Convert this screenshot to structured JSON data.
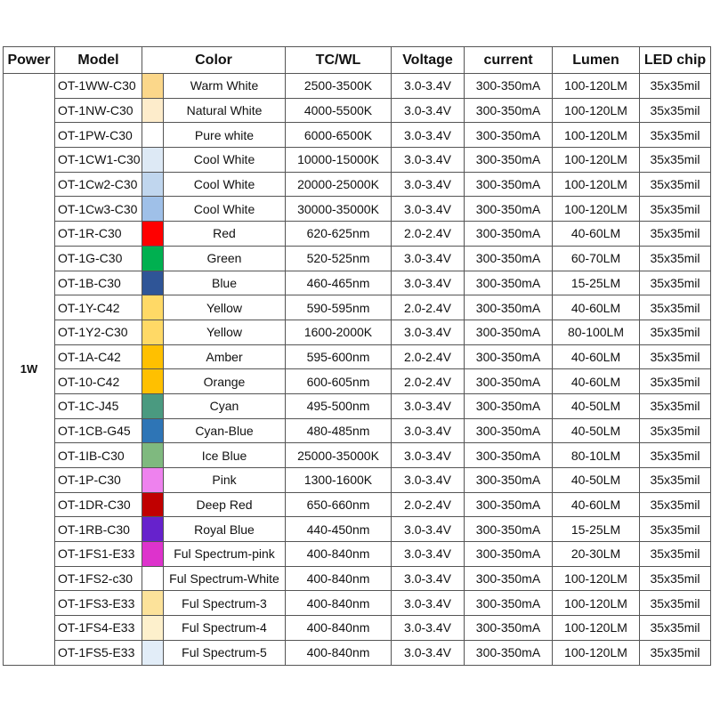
{
  "headers": {
    "power": "Power",
    "model": "Model",
    "color": "Color",
    "tcwl": "TC/WL",
    "voltage": "Voltage",
    "current": "current",
    "lumen": "Lumen",
    "chip": "LED chip"
  },
  "power_value": "1W",
  "rows": [
    {
      "model": "OT-1WW-C30",
      "swatch": "#fbd78a",
      "color": "Warm White",
      "tcwl": "2500-3500K",
      "voltage": "3.0-3.4V",
      "current": "300-350mA",
      "lumen": "100-120LM",
      "chip": "35x35mil"
    },
    {
      "model": "OT-1NW-C30",
      "swatch": "#fdeccb",
      "color": "Natural White",
      "tcwl": "4000-5500K",
      "voltage": "3.0-3.4V",
      "current": "300-350mA",
      "lumen": "100-120LM",
      "chip": "35x35mil"
    },
    {
      "model": "OT-1PW-C30",
      "swatch": "#ffffff",
      "color": "Pure white",
      "tcwl": "6000-6500K",
      "voltage": "3.0-3.4V",
      "current": "300-350mA",
      "lumen": "100-120LM",
      "chip": "35x35mil"
    },
    {
      "model": "OT-1CW1-C30",
      "swatch": "#dde9f5",
      "color": "Cool White",
      "tcwl": "10000-15000K",
      "voltage": "3.0-3.4V",
      "current": "300-350mA",
      "lumen": "100-120LM",
      "chip": "35x35mil"
    },
    {
      "model": "OT-1Cw2-C30",
      "swatch": "#c0d6ee",
      "color": "Cool White",
      "tcwl": "20000-25000K",
      "voltage": "3.0-3.4V",
      "current": "300-350mA",
      "lumen": "100-120LM",
      "chip": "35x35mil"
    },
    {
      "model": "OT-1Cw3-C30",
      "swatch": "#9fc0e8",
      "color": "Cool White",
      "tcwl": "30000-35000K",
      "voltage": "3.0-3.4V",
      "current": "300-350mA",
      "lumen": "100-120LM",
      "chip": "35x35mil"
    },
    {
      "model": "OT-1R-C30",
      "swatch": "#ff0000",
      "color": "Red",
      "tcwl": "620-625nm",
      "voltage": "2.0-2.4V",
      "current": "300-350mA",
      "lumen": "40-60LM",
      "chip": "35x35mil"
    },
    {
      "model": "OT-1G-C30",
      "swatch": "#00b050",
      "color": "Green",
      "tcwl": "520-525nm",
      "voltage": "3.0-3.4V",
      "current": "300-350mA",
      "lumen": "60-70LM",
      "chip": "35x35mil"
    },
    {
      "model": "OT-1B-C30",
      "swatch": "#2f5597",
      "color": "Blue",
      "tcwl": "460-465nm",
      "voltage": "3.0-3.4V",
      "current": "300-350mA",
      "lumen": "15-25LM",
      "chip": "35x35mil"
    },
    {
      "model": "OT-1Y-C42",
      "swatch": "#ffd966",
      "color": "Yellow",
      "tcwl": "590-595nm",
      "voltage": "2.0-2.4V",
      "current": "300-350mA",
      "lumen": "40-60LM",
      "chip": "35x35mil"
    },
    {
      "model": "OT-1Y2-C30",
      "swatch": "#ffd966",
      "color": "Yellow",
      "tcwl": "1600-2000K",
      "voltage": "3.0-3.4V",
      "current": "300-350mA",
      "lumen": "80-100LM",
      "chip": "35x35mil"
    },
    {
      "model": "OT-1A-C42",
      "swatch": "#ffc000",
      "color": "Amber",
      "tcwl": "595-600nm",
      "voltage": "2.0-2.4V",
      "current": "300-350mA",
      "lumen": "40-60LM",
      "chip": "35x35mil"
    },
    {
      "model": "OT-10-C42",
      "swatch": "#ffc000",
      "color": "Orange",
      "tcwl": "600-605nm",
      "voltage": "2.0-2.4V",
      "current": "300-350mA",
      "lumen": "40-60LM",
      "chip": "35x35mil"
    },
    {
      "model": "OT-1C-J45",
      "swatch": "#4a9a80",
      "color": "Cyan",
      "tcwl": "495-500nm",
      "voltage": "3.0-3.4V",
      "current": "300-350mA",
      "lumen": "40-50LM",
      "chip": "35x35mil"
    },
    {
      "model": "OT-1CB-G45",
      "swatch": "#2e75b6",
      "color": "Cyan-Blue",
      "tcwl": "480-485nm",
      "voltage": "3.0-3.4V",
      "current": "300-350mA",
      "lumen": "40-50LM",
      "chip": "35x35mil"
    },
    {
      "model": "OT-1IB-C30",
      "swatch": "#7fb97f",
      "color": "Ice Blue",
      "tcwl": "25000-35000K",
      "voltage": "3.0-3.4V",
      "current": "300-350mA",
      "lumen": "80-10LM",
      "chip": "35x35mil"
    },
    {
      "model": "OT-1P-C30",
      "swatch": "#ee82ee",
      "color": "Pink",
      "tcwl": "1300-1600K",
      "voltage": "3.0-3.4V",
      "current": "300-350mA",
      "lumen": "40-50LM",
      "chip": "35x35mil"
    },
    {
      "model": "OT-1DR-C30",
      "swatch": "#c00000",
      "color": "Deep Red",
      "tcwl": "650-660nm",
      "voltage": "2.0-2.4V",
      "current": "300-350mA",
      "lumen": "40-60LM",
      "chip": "35x35mil"
    },
    {
      "model": "OT-1RB-C30",
      "swatch": "#6622cc",
      "color": "Royal Blue",
      "tcwl": "440-450nm",
      "voltage": "3.0-3.4V",
      "current": "300-350mA",
      "lumen": "15-25LM",
      "chip": "35x35mil"
    },
    {
      "model": "OT-1FS1-E33",
      "swatch": "#dd33cc",
      "color": "Ful Spectrum-pink",
      "tcwl": "400-840nm",
      "voltage": "3.0-3.4V",
      "current": "300-350mA",
      "lumen": "20-30LM",
      "chip": "35x35mil"
    },
    {
      "model": "OT-1FS2-c30",
      "swatch": "#ffffff",
      "color": "Ful Spectrum-White",
      "tcwl": "400-840nm",
      "voltage": "3.0-3.4V",
      "current": "300-350mA",
      "lumen": "100-120LM",
      "chip": "35x35mil"
    },
    {
      "model": "OT-1FS3-E33",
      "swatch": "#fce29a",
      "color": "Ful Spectrum-3",
      "tcwl": "400-840nm",
      "voltage": "3.0-3.4V",
      "current": "300-350mA",
      "lumen": "100-120LM",
      "chip": "35x35mil"
    },
    {
      "model": "OT-1FS4-E33",
      "swatch": "#fdf0cc",
      "color": "Ful Spectrum-4",
      "tcwl": "400-840nm",
      "voltage": "3.0-3.4V",
      "current": "300-350mA",
      "lumen": "100-120LM",
      "chip": "35x35mil"
    },
    {
      "model": "OT-1FS5-E33",
      "swatch": "#e2edf8",
      "color": "Ful Spectrum-5",
      "tcwl": "400-840nm",
      "voltage": "3.0-3.4V",
      "current": "300-350mA",
      "lumen": "100-120LM",
      "chip": "35x35mil"
    }
  ]
}
